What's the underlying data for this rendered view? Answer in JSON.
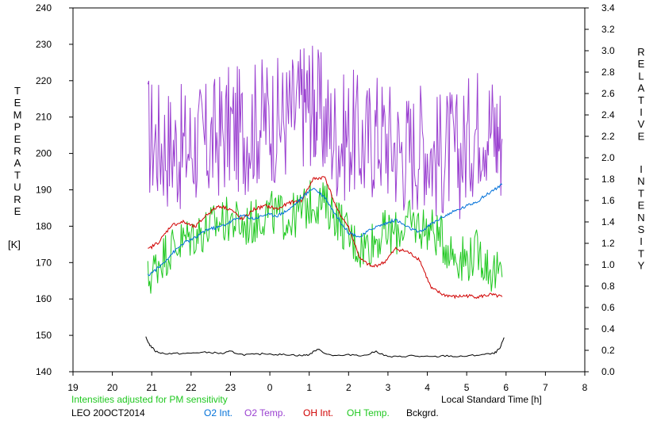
{
  "chart_data": {
    "type": "line",
    "title": "",
    "left_axis": {
      "label_letters": [
        "T",
        "E",
        "M",
        "P",
        "E",
        "R",
        "A",
        "T",
        "U",
        "R",
        "E"
      ],
      "unit": "[K]",
      "ylim": [
        140,
        240
      ],
      "ticks": [
        "140",
        "150",
        "160",
        "170",
        "180",
        "190",
        "200",
        "210",
        "220",
        "230",
        "240"
      ]
    },
    "right_axis": {
      "label_word1": [
        "R",
        "E",
        "L",
        "A",
        "T",
        "I",
        "V",
        "E"
      ],
      "label_word2": [
        "I",
        "N",
        "T",
        "E",
        "N",
        "S",
        "I",
        "T",
        "Y"
      ],
      "ylim": [
        0.0,
        3.4
      ],
      "ticks": [
        "0.0",
        "0.2",
        "0.4",
        "0.6",
        "0.8",
        "1.0",
        "1.2",
        "1.4",
        "1.6",
        "1.8",
        "2.0",
        "2.2",
        "2.4",
        "2.6",
        "2.8",
        "3.0",
        "3.2",
        "3.4"
      ]
    },
    "x_axis": {
      "label": "Local Standard Time [h]",
      "ticks": [
        "19",
        "20",
        "21",
        "22",
        "23",
        "0",
        "1",
        "2",
        "3",
        "4",
        "5",
        "6",
        "7",
        "8"
      ],
      "xlim": [
        19,
        32
      ]
    },
    "note": "Intensities adjusted for PM sensitivity",
    "station": "LEO 20OCT2014",
    "legend": [
      {
        "label": "O2 Int.",
        "color": "#0070d8"
      },
      {
        "label": "O2 Temp.",
        "color": "#9a40d0"
      },
      {
        "label": "OH Int.",
        "color": "#d00000"
      },
      {
        "label": "OH Temp.",
        "color": "#20c820"
      },
      {
        "label": "Bckgrd.",
        "color": "#000000"
      }
    ],
    "series": [
      {
        "name": "O2 Temp.",
        "axis": "left",
        "color": "#9a40d0",
        "x": [
          20.9,
          21.2,
          21.5,
          21.8,
          22.1,
          22.4,
          22.7,
          23.0,
          23.3,
          23.6,
          23.9,
          24.2,
          24.5,
          24.8,
          25.0,
          25.2,
          25.5,
          25.8,
          26.1,
          26.4,
          26.7,
          27.0,
          27.3,
          27.6,
          27.9,
          28.2,
          28.5,
          28.8,
          29.1,
          29.4,
          29.7,
          29.9
        ],
        "y": [
          205,
          203,
          202,
          201,
          203,
          202,
          205,
          207,
          206,
          208,
          210,
          209,
          210,
          213,
          215,
          212,
          207,
          204,
          206,
          202,
          206,
          204,
          201,
          201,
          204,
          199,
          201,
          199,
          205,
          210,
          206,
          204
        ]
      },
      {
        "name": "OH Temp.",
        "axis": "left",
        "color": "#20c820",
        "x": [
          20.9,
          21.2,
          21.5,
          21.8,
          22.1,
          22.4,
          22.7,
          23.0,
          23.3,
          23.6,
          23.9,
          24.2,
          24.5,
          24.8,
          25.1,
          25.4,
          25.7,
          26.0,
          26.3,
          26.6,
          26.9,
          27.2,
          27.5,
          27.8,
          28.1,
          28.4,
          28.7,
          29.0,
          29.3,
          29.6,
          29.9
        ],
        "y": [
          165,
          171,
          174,
          176,
          178,
          179,
          181,
          182,
          180,
          181,
          184,
          183,
          182,
          184,
          187,
          186,
          183,
          177,
          174,
          176,
          178,
          178,
          181,
          180,
          179,
          176,
          172,
          171,
          173,
          168,
          166
        ]
      },
      {
        "name": "OH Int.",
        "axis": "right",
        "color": "#d00000",
        "x": [
          20.9,
          21.2,
          21.5,
          21.8,
          22.1,
          22.4,
          22.7,
          23.0,
          23.3,
          23.6,
          23.9,
          24.2,
          24.5,
          24.8,
          25.1,
          25.4,
          25.7,
          26.0,
          26.3,
          26.6,
          26.9,
          27.2,
          27.5,
          27.8,
          28.1,
          28.4,
          28.7,
          29.0,
          29.3,
          29.6,
          29.9
        ],
        "y": [
          1.14,
          1.22,
          1.37,
          1.4,
          1.35,
          1.47,
          1.55,
          1.52,
          1.42,
          1.52,
          1.55,
          1.52,
          1.58,
          1.6,
          1.8,
          1.82,
          1.52,
          1.35,
          1.05,
          0.98,
          1.02,
          1.15,
          1.12,
          1.05,
          0.78,
          0.72,
          0.7,
          0.71,
          0.7,
          0.72,
          0.7
        ]
      },
      {
        "name": "O2 Int.",
        "axis": "right",
        "color": "#0070d8",
        "x": [
          20.9,
          21.2,
          21.5,
          21.8,
          22.1,
          22.4,
          22.7,
          23.0,
          23.3,
          23.6,
          23.9,
          24.2,
          24.5,
          24.8,
          25.1,
          25.4,
          25.7,
          26.0,
          26.3,
          26.6,
          26.9,
          27.2,
          27.5,
          27.8,
          28.1,
          28.4,
          28.7,
          29.0,
          29.3,
          29.6,
          29.9
        ],
        "y": [
          0.9,
          0.98,
          1.1,
          1.2,
          1.25,
          1.33,
          1.35,
          1.4,
          1.46,
          1.43,
          1.47,
          1.46,
          1.52,
          1.62,
          1.72,
          1.63,
          1.45,
          1.3,
          1.26,
          1.34,
          1.38,
          1.42,
          1.35,
          1.3,
          1.38,
          1.45,
          1.5,
          1.55,
          1.6,
          1.68,
          1.75
        ]
      },
      {
        "name": "Bckgrd.",
        "axis": "right",
        "color": "#000000",
        "x": [
          20.85,
          20.95,
          21.1,
          21.3,
          21.6,
          21.9,
          22.2,
          22.5,
          22.8,
          23.0,
          23.3,
          23.6,
          23.9,
          24.2,
          24.5,
          24.8,
          25.0,
          25.2,
          25.5,
          25.8,
          26.1,
          26.4,
          26.7,
          27.0,
          27.3,
          27.6,
          27.9,
          28.2,
          28.5,
          28.8,
          29.1,
          29.4,
          29.7,
          29.85,
          29.95
        ],
        "y": [
          0.32,
          0.25,
          0.19,
          0.17,
          0.17,
          0.17,
          0.18,
          0.18,
          0.17,
          0.19,
          0.16,
          0.16,
          0.17,
          0.16,
          0.16,
          0.15,
          0.16,
          0.21,
          0.16,
          0.15,
          0.16,
          0.15,
          0.19,
          0.14,
          0.14,
          0.15,
          0.14,
          0.14,
          0.15,
          0.14,
          0.15,
          0.16,
          0.17,
          0.22,
          0.32
        ]
      }
    ]
  }
}
